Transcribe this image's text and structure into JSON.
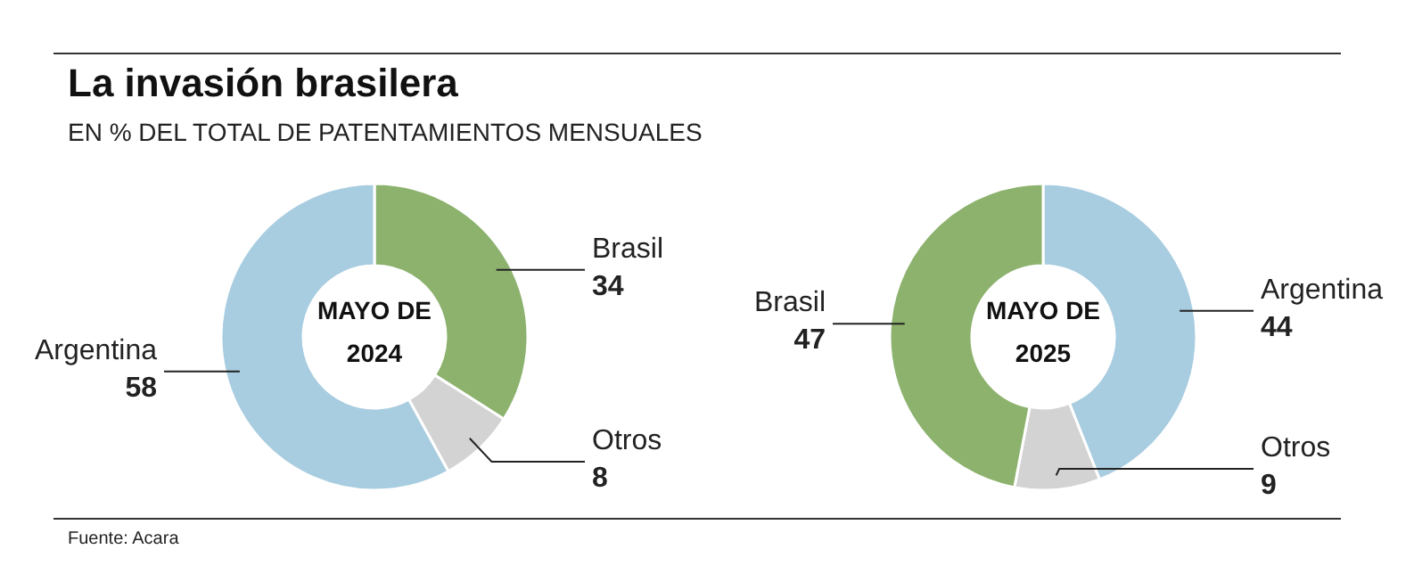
{
  "chart_data": [
    {
      "type": "donut",
      "title": "La invasión brasilera",
      "subtitle": "EN % DEL TOTAL DE PATENTAMIENTOS MENSUALES",
      "categories": [
        "Brasil",
        "Otros",
        "Argentina"
      ],
      "values": [
        34,
        8,
        58
      ],
      "colors": [
        "#8cb26d",
        "#d3d3d3",
        "#a8cce0"
      ],
      "data_labels": true,
      "annotations": [
        "MAYO DE 2024",
        "Fuente: Acara"
      ]
    },
    {
      "type": "donut",
      "categories": [
        "Argentina",
        "Otros",
        "Brasil"
      ],
      "values": [
        44,
        9,
        47
      ],
      "colors": [
        "#a8cce0",
        "#d3d3d3",
        "#8cb26d"
      ],
      "data_labels": true,
      "annotations": [
        "MAYO DE 2025"
      ]
    }
  ]
}
